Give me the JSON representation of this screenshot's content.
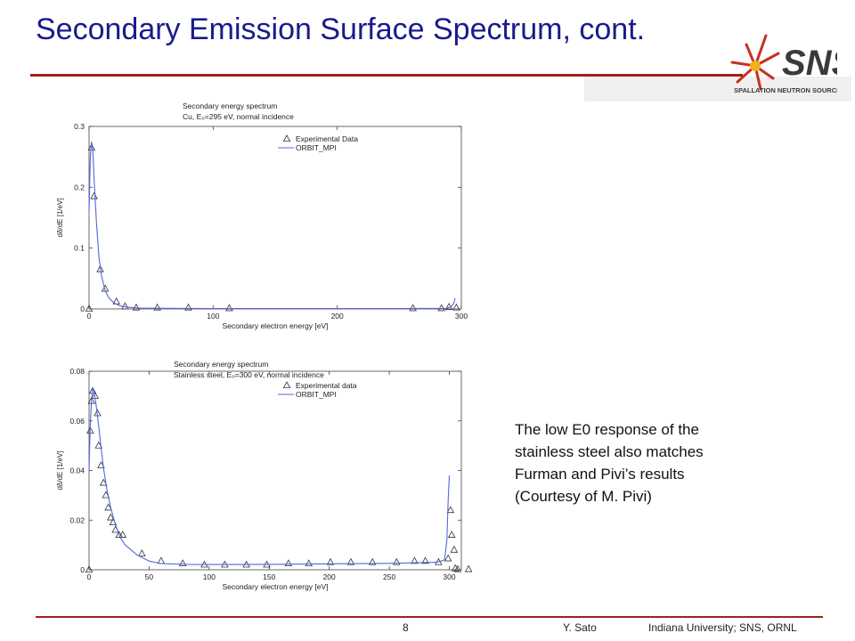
{
  "slide": {
    "title": "Secondary Emission Surface Spectrum,  cont.",
    "note_lines": [
      "The low E0 response of the",
      "stainless steel also matches",
      "Furman and Pivi’s results",
      "(Courtesy of M. Pivi)"
    ],
    "footer": {
      "page": "8",
      "author": "Y. Sato",
      "affiliation": "Indiana University;   SNS, ORNL"
    },
    "logo": {
      "text": "SNS",
      "subtext": "SPALLATION NEUTRON SOURCE"
    },
    "colors": {
      "title": "#1a1a8c",
      "rule": "#a0201c",
      "model_line": "#5566dd",
      "marker": "#333333"
    }
  },
  "chart_data": [
    {
      "type": "line",
      "title": "Secondary energy spectrum",
      "subtitle": "Cu, E₀=295 eV, normal incidence",
      "xlabel": "Secondary electron energy [eV]",
      "ylabel": "dδ/dE [1/eV]",
      "xlim": [
        0,
        300
      ],
      "ylim": [
        0,
        0.3
      ],
      "xticks": [
        "0",
        "100",
        "200",
        "300"
      ],
      "yticks": [
        "0",
        "0.1",
        "0.2",
        "0.3"
      ],
      "grid": false,
      "legend_position": "top-right",
      "legend": [
        "Experimental Data",
        "ORBIT_MPI"
      ],
      "series": [
        {
          "name": "Experimental Data",
          "marker": "triangle",
          "x": [
            0,
            2,
            4,
            9,
            13,
            22,
            29,
            38,
            55,
            80,
            113,
            261,
            284,
            290,
            296
          ],
          "y": [
            0.0,
            0.265,
            0.185,
            0.065,
            0.033,
            0.012,
            0.004,
            0.002,
            0.002,
            0.002,
            0.001,
            0.001,
            0.001,
            0.003,
            0.002
          ]
        },
        {
          "name": "ORBIT_MPI",
          "line": "solid",
          "x": [
            0,
            1,
            2,
            3,
            4,
            6,
            8,
            10,
            13,
            16,
            20,
            25,
            30,
            40,
            60,
            100,
            150,
            200,
            250,
            288,
            292,
            294,
            295
          ],
          "y": [
            0.16,
            0.25,
            0.275,
            0.26,
            0.215,
            0.14,
            0.085,
            0.055,
            0.03,
            0.018,
            0.01,
            0.005,
            0.003,
            0.0015,
            0.001,
            0.0008,
            0.0008,
            0.0008,
            0.0008,
            0.001,
            0.004,
            0.01,
            0.018
          ]
        }
      ]
    },
    {
      "type": "line",
      "title": "Secondary energy spectrum",
      "subtitle": "Stainless steel, E₀=300 eV, normal incidence",
      "xlabel": "Secondary electron energy [eV]",
      "ylabel": "dδ/dE [1/eV]",
      "xlim": [
        0,
        310
      ],
      "ylim": [
        0,
        0.08
      ],
      "xticks": [
        "0",
        "50",
        "100",
        "150",
        "200",
        "250",
        "300"
      ],
      "yticks": [
        "0",
        "0.02",
        "0.04",
        "0.06",
        "0.08"
      ],
      "grid": false,
      "legend_position": "top-right",
      "legend": [
        "Experimental data",
        "ORBIT_MPI"
      ],
      "series": [
        {
          "name": "Experimental data",
          "marker": "triangle",
          "x": [
            0,
            1,
            2,
            3,
            5,
            7,
            8,
            10,
            12,
            14,
            16,
            18,
            20,
            22,
            25,
            28,
            44,
            60,
            78,
            96,
            113,
            131,
            148,
            166,
            183,
            201,
            218,
            236,
            256,
            271,
            280,
            291,
            299,
            301,
            302,
            304,
            305,
            307,
            316
          ],
          "y": [
            0.0,
            0.056,
            0.068,
            0.072,
            0.07,
            0.063,
            0.05,
            0.042,
            0.035,
            0.03,
            0.025,
            0.021,
            0.019,
            0.016,
            0.014,
            0.014,
            0.0065,
            0.0035,
            0.0025,
            0.002,
            0.002,
            0.002,
            0.002,
            0.0025,
            0.0025,
            0.003,
            0.003,
            0.003,
            0.003,
            0.0035,
            0.0035,
            0.003,
            0.0045,
            0.024,
            0.014,
            0.008,
            0.0005,
            0.0002,
            0.0002
          ]
        },
        {
          "name": "ORBIT_MPI",
          "line": "solid",
          "x": [
            0,
            1,
            2,
            3,
            4,
            6,
            8,
            10,
            12,
            15,
            18,
            22,
            26,
            30,
            40,
            50,
            60,
            80,
            100,
            150,
            200,
            250,
            290,
            296,
            298,
            299,
            300
          ],
          "y": [
            0.04,
            0.058,
            0.068,
            0.073,
            0.072,
            0.066,
            0.058,
            0.049,
            0.041,
            0.032,
            0.025,
            0.018,
            0.013,
            0.01,
            0.006,
            0.0035,
            0.0025,
            0.0022,
            0.0021,
            0.0022,
            0.0024,
            0.0026,
            0.003,
            0.004,
            0.012,
            0.028,
            0.038
          ]
        }
      ]
    }
  ]
}
